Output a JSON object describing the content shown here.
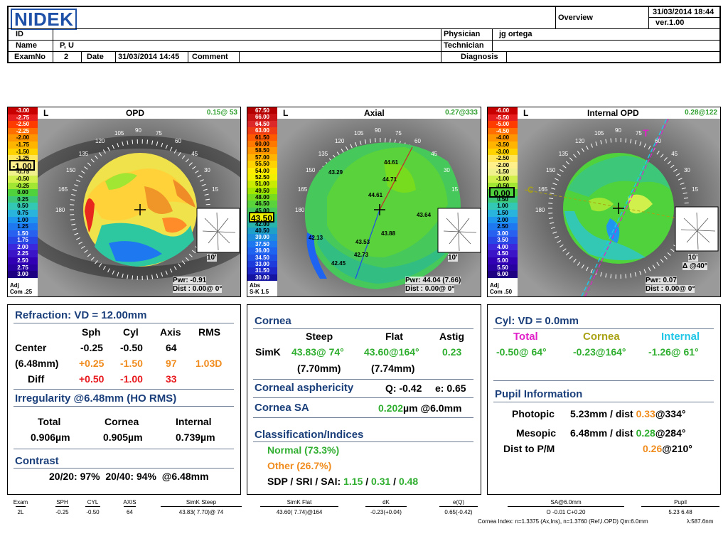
{
  "header": {
    "logo": "NIDEK",
    "view": "Overview",
    "datetime": "31/03/2014 18:44",
    "version": "ver.1.00",
    "id_label": "ID",
    "name_label": "Name",
    "name_value": "P, U",
    "examno_label": "ExamNo",
    "examno_value": "2",
    "date_label": "Date",
    "date_value": "31/03/2014 14:45",
    "comment_label": "Comment",
    "physician_label": "Physician",
    "physician_value": "jg ortega",
    "technician_label": "Technician",
    "diagnosis_label": "Diagnosis"
  },
  "maps": [
    {
      "eye": "L",
      "title": "OPD",
      "corner_value": "0.15@ 53",
      "pwr": "Pwr: -0.91",
      "dist": "Dist : 0.00@ 0°",
      "size_label": "10'",
      "adj": "Adj",
      "adj2": "Com .25",
      "selected_value": "-1.00",
      "scale": [
        "-3.00",
        "-2.75",
        "-2.50",
        "-2.25",
        "-2.00",
        "-1.75",
        "-1.50",
        "-1.25",
        "-1.00",
        "-0.75",
        "-0.50",
        "-0.25",
        "0.00",
        "0.25",
        "0.50",
        "0.75",
        "1.00",
        "1.25",
        "1.50",
        "1.75",
        "2.00",
        "2.25",
        "2.50",
        "2.75",
        "3.00"
      ],
      "scale_colors": [
        "#c80000",
        "#e61e1e",
        "#ff3c00",
        "#ff6e00",
        "#ff9600",
        "#ffb400",
        "#ffd200",
        "#ffe65a",
        "#fff08c",
        "#f0f08c",
        "#d2f04b",
        "#a0e632",
        "#50d23c",
        "#3cc878",
        "#32c8b4",
        "#28b4dc",
        "#1e96f0",
        "#1e78f0",
        "#2860f0",
        "#2846e6",
        "#3c28dc",
        "#3c14c8",
        "#3200b4",
        "#2800a0",
        "#1e0082"
      ]
    },
    {
      "eye": "L",
      "title": "Axial",
      "corner_value": "0.27@333",
      "pwr": "Pwr: 44.04 (7.66)",
      "dist": "Dist : 0.00@ 0°",
      "size_label": "10'",
      "adj": "Abs",
      "adj2": "S-K 1.5",
      "selected_value": "43.50",
      "scale": [
        "67.50",
        "66.00",
        "64.50",
        "63.00",
        "61.50",
        "60.00",
        "58.50",
        "57.00",
        "55.50",
        "54.00",
        "52.50",
        "51.00",
        "49.50",
        "48.00",
        "46.50",
        "45.00",
        "43.50",
        "42.00",
        "40.50",
        "39.00",
        "37.50",
        "36.00",
        "34.50",
        "33.00",
        "31.50",
        "30.00"
      ],
      "scale_colors": [
        "#b40000",
        "#c81414",
        "#dc2828",
        "#f03c14",
        "#ff5a00",
        "#ff7800",
        "#ff9600",
        "#ffb400",
        "#ffd200",
        "#ffeb00",
        "#f0f000",
        "#c8eb00",
        "#a0e600",
        "#78dc1e",
        "#5ad23c",
        "#46c85a",
        "#32be82",
        "#28b4aa",
        "#1ea0c8",
        "#1e8cdc",
        "#1e78f0",
        "#1e64f0",
        "#1e50e6",
        "#1e3cdc",
        "#1e28c8",
        "#1414a0"
      ]
    },
    {
      "eye": "L",
      "title": "Internal OPD",
      "corner_value": "0.28@122",
      "pwr": "Pwr: 0.07",
      "dist": "Dist : 0.00@ 0°",
      "size_label": "10'",
      "delta": "Δ @40°",
      "adj": "Adj",
      "adj2": "Com .50",
      "selected_value": "0.00",
      "scale": [
        "-6.00",
        "-5.50",
        "-5.00",
        "-4.50",
        "-4.00",
        "-3.50",
        "-3.00",
        "-2.50",
        "-2.00",
        "-1.50",
        "-1.00",
        "-0.50",
        "0.00",
        "0.50",
        "1.00",
        "1.50",
        "2.00",
        "2.50",
        "3.00",
        "3.50",
        "4.00",
        "4.50",
        "5.00",
        "5.50",
        "6.00"
      ],
      "scale_colors": [
        "#c80000",
        "#e61e1e",
        "#ff3c00",
        "#ff6e00",
        "#ff9600",
        "#ffb400",
        "#ffd200",
        "#ffe65a",
        "#fff08c",
        "#f0f08c",
        "#d2f04b",
        "#a0e632",
        "#50d23c",
        "#3cc878",
        "#32c8b4",
        "#28b4dc",
        "#1e96f0",
        "#1e78f0",
        "#2860f0",
        "#2846e6",
        "#3c28dc",
        "#3c14c8",
        "#3200b4",
        "#2800a0",
        "#1e0082"
      ]
    }
  ],
  "axial_labels": [
    "43.29",
    "44.61",
    "44.71",
    "44.61",
    "43.64",
    "43.88",
    "43.53",
    "42.13",
    "42.73",
    "42.45"
  ],
  "angle_labels": [
    "90",
    "75",
    "60",
    "45",
    "30",
    "15",
    "180",
    "165",
    "150",
    "135",
    "120",
    "105"
  ],
  "refraction": {
    "title": "Refraction: VD = 12.00mm",
    "headers": [
      "Sph",
      "Cyl",
      "Axis",
      "RMS"
    ],
    "center_label": "Center",
    "center": [
      "-0.25",
      "-0.50",
      "64"
    ],
    "row2_label": "(6.48mm)",
    "row2": [
      "+0.25",
      "-1.50",
      "97",
      "1.03D"
    ],
    "diff_label": "Diff",
    "diff": [
      "+0.50",
      "-1.00",
      "33"
    ],
    "irr_title": "Irregularity @6.48mm (HO RMS)",
    "irr_headers": [
      "Total",
      "Cornea",
      "Internal"
    ],
    "irr_values": [
      "0.906µm",
      "0.905µm",
      "0.739µm"
    ],
    "contrast_title": "Contrast",
    "contrast": "20/20: 97%  20/40: 94%  @6.48mm"
  },
  "cornea": {
    "title": "Cornea",
    "headers": [
      "Steep",
      "Flat",
      "Astig"
    ],
    "simk_label": "SimK",
    "steep": "43.83@ 74°",
    "flat": "43.60@164°",
    "astig": "0.23",
    "steep_mm": "(7.70mm)",
    "flat_mm": "(7.74mm)",
    "asph_title": "Corneal asphericity",
    "q": "Q: -0.42",
    "e": "e: 0.65",
    "sa_title": "Cornea SA",
    "sa_value": "0.202",
    "sa_unit": "µm @6.0mm",
    "class_title": "Classification/Indices",
    "normal": "Normal (73.3%)",
    "other": "Other (26.7%)",
    "idx_label": "SDP / SRI / SAI:",
    "sdp": "1.15",
    "sri": "0.31",
    "sai": "0.48"
  },
  "cyl": {
    "title": "Cyl: VD = 0.0mm",
    "headers": [
      "Total",
      "Cornea",
      "Internal"
    ],
    "values": [
      "-0.50@ 64°",
      "-0.23@164°",
      "-1.26@ 61°"
    ],
    "pupil_title": "Pupil Information",
    "photopic_label": "Photopic",
    "photopic_mm": "5.23mm / dist",
    "photopic_dist": "0.33",
    "photopic_ang": "@334°",
    "mesopic_label": "Mesopic",
    "mesopic_mm": "6.48mm / dist",
    "mesopic_dist": "0.28",
    "mesopic_ang": "@284°",
    "pm_label": "Dist to P/M",
    "pm_dist": "0.26",
    "pm_ang": "@210°"
  },
  "footer": {
    "headers": [
      "Exam",
      "SPH",
      "CYL",
      "AXIS",
      "SimK Steep",
      "SimK Flat",
      "dK",
      "e(Q)",
      "SA@6.0mm",
      "Pupil"
    ],
    "values": [
      "2L",
      "-0.25",
      "-0.50",
      "64",
      "43.83( 7.70)@ 74",
      "43.60( 7.74)@164",
      "-0.23(+0.04)",
      "0.65(-0.42)",
      "O -0.01  C+0.20",
      "5.23   6.48"
    ],
    "note": "Cornea Index: n=1.3375 (Ax,Ins), n=1.3760 (Ref,I.OPD)  Qm:6.0mm",
    "lambda": "λ:587.6nm"
  }
}
